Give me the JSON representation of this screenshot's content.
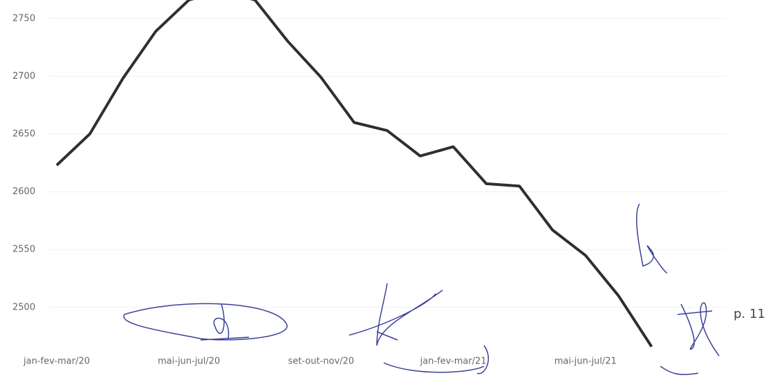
{
  "chart_data": {
    "type": "line",
    "categories": [
      "jan-fev-mar/20",
      null,
      null,
      null,
      "mai-jun-jul/20",
      null,
      null,
      null,
      "set-out-nov/20",
      null,
      null,
      null,
      "jan-fev-mar/21",
      null,
      null,
      null,
      "mai-jun-jul/21",
      null,
      null
    ],
    "series": [
      {
        "color": "#2f2f2f",
        "values": [
          2623,
          2650,
          2698,
          2739,
          2766,
          2774,
          2766,
          2730,
          2699,
          2660,
          2653,
          2631,
          2639,
          2607,
          2605,
          2567,
          2545,
          2510,
          2466
        ]
      }
    ],
    "ylim": [
      2461,
      2766
    ],
    "yticks": [
      2500,
      2550,
      2600,
      2650,
      2700,
      2750
    ],
    "grid": true
  },
  "page_number": "p. 11"
}
